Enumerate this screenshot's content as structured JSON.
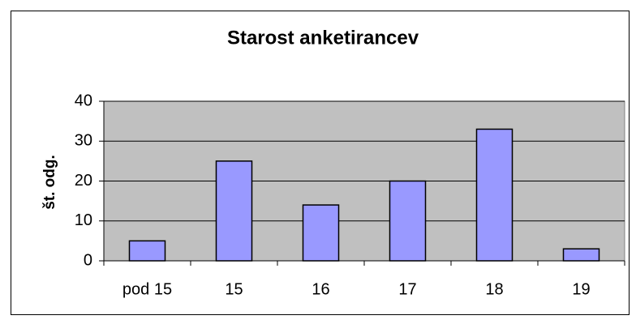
{
  "chart_data": {
    "type": "bar",
    "title": "Starost anketirancev",
    "ylabel": "št. odg.",
    "categories": [
      "pod 15",
      "15",
      "16",
      "17",
      "18",
      "19"
    ],
    "values": [
      5,
      25,
      14,
      20,
      33,
      3
    ],
    "color": "#9999ff",
    "ylim": [
      0,
      40
    ],
    "yticks": [
      0,
      10,
      20,
      30,
      40
    ],
    "grid": true
  }
}
